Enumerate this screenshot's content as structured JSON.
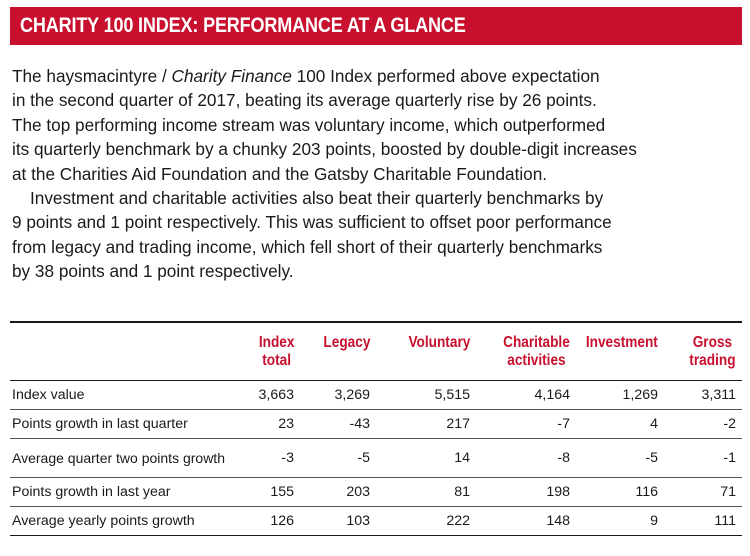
{
  "banner": {
    "title": "CHARITY 100 INDEX: PERFORMANCE AT A GLANCE"
  },
  "body": {
    "p1": [
      [
        "The haysmacintyre / ",
        "Charity Finance",
        " 100 Index performed above expectation"
      ],
      [
        "in the second quarter of 2017, beating its average quarterly rise by 26 points."
      ],
      [
        "The top performing income stream was voluntary income, which outperformed"
      ],
      [
        "its quarterly benchmark by a chunky 203 points, boosted by double-digit increases"
      ],
      [
        "at the Charities Aid Foundation and the Gatsby Charitable Foundation."
      ]
    ],
    "p2": [
      "Investment and charitable activities also beat their quarterly benchmarks by",
      "9 points and 1 point respectively. This was sufficient to offset poor performance",
      "from legacy and trading income, which fell short of their quarterly benchmarks",
      "by 38 points and 1 point respectively."
    ]
  },
  "table": {
    "headers": [
      [
        "Index",
        "total"
      ],
      [
        "Legacy"
      ],
      [
        "Voluntary"
      ],
      [
        "Charitable",
        "activities"
      ],
      [
        "Investment"
      ],
      [
        "Gross",
        "trading"
      ]
    ],
    "rows": [
      {
        "label": "Index value",
        "values": [
          "3,663",
          "3,269",
          "5,515",
          "4,164",
          "1,269",
          "3,311"
        ]
      },
      {
        "label": "Points growth in last quarter",
        "values": [
          "23",
          "-43",
          "217",
          "-7",
          "4",
          "-2"
        ]
      },
      {
        "label": "Average quarter two points growth",
        "values": [
          "-3",
          "-5",
          "14",
          "-8",
          "-5",
          "-1"
        ]
      },
      {
        "label": "Points growth in last year",
        "values": [
          "155",
          "203",
          "81",
          "198",
          "116",
          "71"
        ]
      },
      {
        "label": "Average yearly points growth",
        "values": [
          "126",
          "103",
          "222",
          "148",
          "9",
          "111"
        ]
      }
    ]
  },
  "colors": {
    "accent": "#c8102e",
    "text": "#1a1a1a"
  }
}
